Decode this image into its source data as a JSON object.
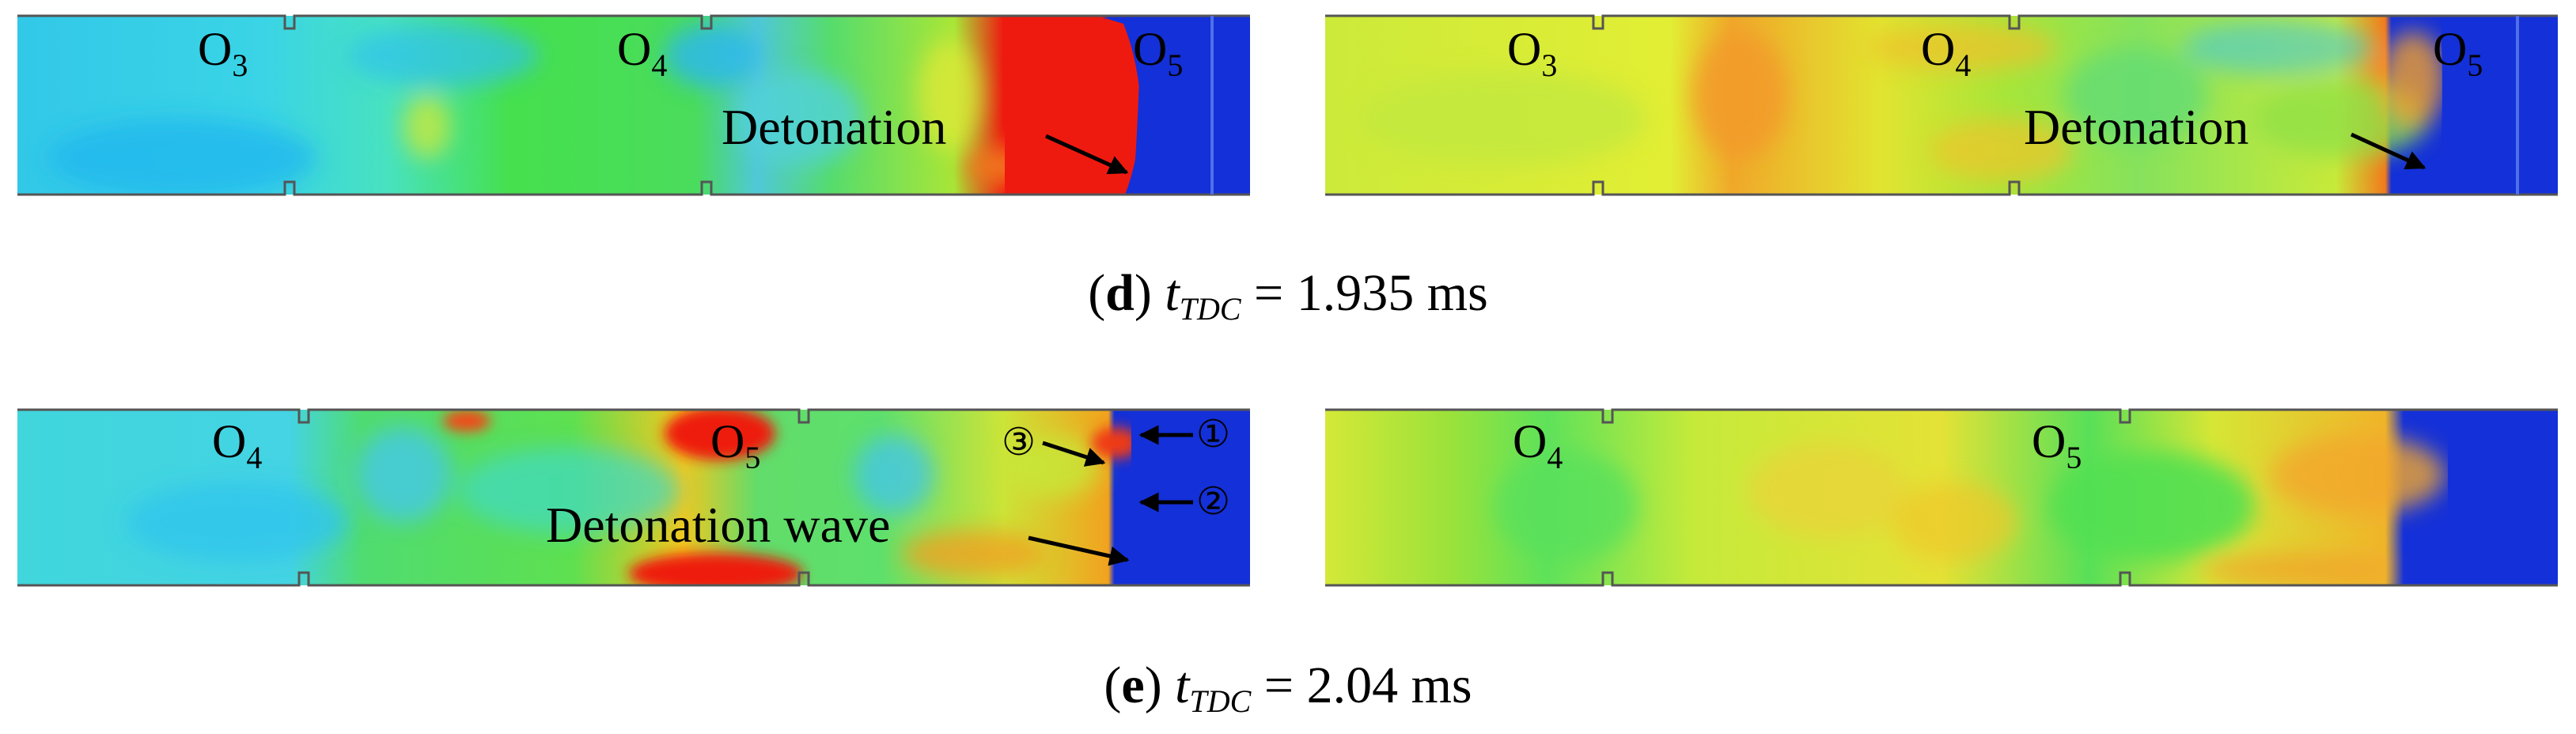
{
  "panels": {
    "d": {
      "letter": "d",
      "var": "t",
      "sub": "TDC",
      "equals": " = ",
      "time": "1.935 ms",
      "left": {
        "ports": [
          {
            "base": "O",
            "sub": "3"
          },
          {
            "base": "O",
            "sub": "4"
          },
          {
            "base": "O",
            "sub": "5"
          }
        ],
        "annotation": "Detonation"
      },
      "right": {
        "ports": [
          {
            "base": "O",
            "sub": "3"
          },
          {
            "base": "O",
            "sub": "4"
          },
          {
            "base": "O",
            "sub": "5"
          }
        ],
        "annotation": "Detonation"
      }
    },
    "e": {
      "letter": "e",
      "var": "t",
      "sub": "TDC",
      "equals": " = ",
      "time": "2.04 ms",
      "left": {
        "ports": [
          {
            "base": "O",
            "sub": "4"
          },
          {
            "base": "O",
            "sub": "5"
          }
        ],
        "annotation": "Detonation wave",
        "markers": [
          "①",
          "②",
          "③"
        ]
      },
      "right": {
        "ports": [
          {
            "base": "O",
            "sub": "4"
          },
          {
            "base": "O",
            "sub": "5"
          }
        ]
      }
    }
  },
  "colors": {
    "cyan": "#2ad4e8",
    "green": "#3ee05a",
    "yellow": "#e2ef2a",
    "orange": "#f29a1c",
    "red": "#ee1a10",
    "blue": "#1430d8"
  }
}
